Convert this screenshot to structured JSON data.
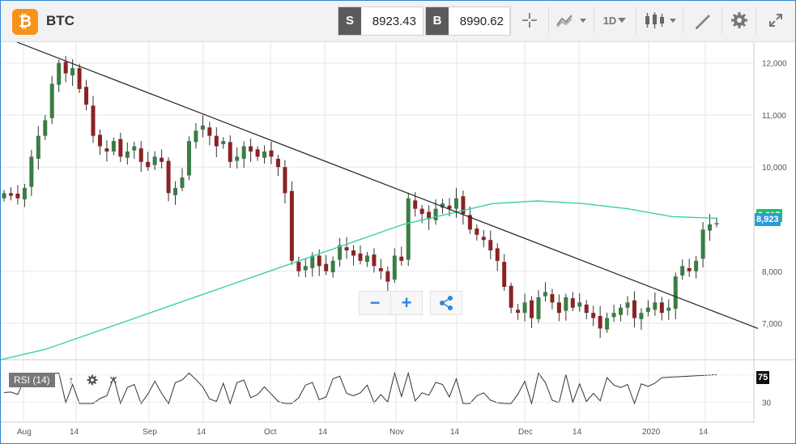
{
  "header": {
    "symbol": "BTC",
    "logo_glyph": "₿",
    "sell_label": "S",
    "sell_price": "8923.43",
    "buy_label": "B",
    "buy_price": "8990.62",
    "interval": "1D"
  },
  "toolbar_icons": [
    "crosshair-icon",
    "chart-type-icon",
    "interval-dropdown",
    "candlestick-icon",
    "drawing-tool-icon",
    "gear-icon",
    "expand-icon"
  ],
  "colors": {
    "bull": "#3a7d45",
    "bear": "#8b2323",
    "ma": "#3ccfa8",
    "trendline": "#222222",
    "last_price": "#2e9bd6",
    "ma_tag": "#1fbf6b",
    "accent": "#2e86d6"
  },
  "price_axis": {
    "ticks": [
      "12,000",
      "11,000",
      "10,000",
      "8,000",
      "7,000"
    ]
  },
  "time_axis": {
    "ticks": [
      "Aug",
      "14",
      "Sep",
      "14",
      "Oct",
      "14",
      "Nov",
      "14",
      "Dec",
      "14",
      "2020",
      "14"
    ]
  },
  "last_price_tag": "8,923",
  "ma_price_tag": "9,017",
  "rsi": {
    "label": "RSI (14)",
    "ticks": [
      "75",
      "30"
    ],
    "current": "75"
  },
  "zoom": {
    "minus": "−",
    "plus": "+"
  },
  "chart_data": {
    "type": "candlestick",
    "title": "",
    "series": [
      {
        "name": "BTC",
        "kind": "ohlc"
      }
    ],
    "ylim": [
      6300,
      12400
    ],
    "y_ticks": [
      7000,
      8000,
      10000,
      11000,
      12000
    ],
    "candles_close": [
      9500,
      9450,
      9400,
      9600,
      10200,
      10600,
      10900,
      11600,
      12000,
      11800,
      11900,
      11500,
      11200,
      10600,
      10400,
      10300,
      10500,
      10200,
      10300,
      10400,
      10100,
      10000,
      10200,
      10100,
      9500,
      9600,
      9800,
      10500,
      10700,
      10800,
      10600,
      10400,
      10500,
      10100,
      10200,
      10400,
      10300,
      10200,
      10300,
      10200,
      10000,
      9500,
      8200,
      8000,
      8100,
      8300,
      8100,
      8000,
      8200,
      8500,
      8400,
      8300,
      8200,
      8300,
      8100,
      8000,
      7800,
      8300,
      8200,
      9400,
      9200,
      9100,
      9000,
      9200,
      9300,
      9200,
      9400,
      9100,
      8800,
      8700,
      8600,
      8400,
      8200,
      7700,
      7300,
      7200,
      7400,
      7100,
      7500,
      7600,
      7400,
      7200,
      7500,
      7300,
      7400,
      7200,
      7100,
      6900,
      7100,
      7200,
      7300,
      7400,
      7100,
      7200,
      7300,
      7400,
      7200,
      7300,
      7900,
      8100,
      8000,
      8200,
      8800,
      8900,
      8923
    ],
    "moving_average": [
      6300,
      6500,
      6800,
      7100,
      7400,
      7700,
      8000,
      8300,
      8600,
      8900,
      9100,
      9300,
      9350,
      9300,
      9200,
      9050,
      9017
    ],
    "trendline": [
      [
        0,
        12400
      ],
      [
        104,
        6900
      ]
    ],
    "rsi_range": [
      30,
      75
    ]
  }
}
